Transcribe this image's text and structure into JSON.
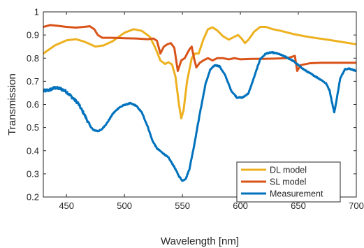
{
  "chart_data": {
    "type": "line",
    "title": "",
    "xlabel": "Wavelength [nm]",
    "ylabel": "Transmission",
    "xlim": [
      430,
      700
    ],
    "ylim": [
      0.2,
      1.0
    ],
    "xticks": [
      450,
      500,
      550,
      600,
      650,
      700
    ],
    "yticks": [
      0.2,
      0.3,
      0.4,
      0.5,
      0.6,
      0.7,
      0.8,
      0.9,
      1.0
    ],
    "ytick_labels": [
      "0.2",
      "0.3",
      "0.4",
      "0.5",
      "0.6",
      "0.7",
      "0.8",
      "0.9",
      "1"
    ],
    "grid": false,
    "box": true,
    "legend_position": "bottom-right",
    "series": [
      {
        "name": "DL model",
        "color": "#EDB120",
        "points": [
          [
            430,
            0.82
          ],
          [
            440,
            0.855
          ],
          [
            450,
            0.877
          ],
          [
            458,
            0.882
          ],
          [
            465,
            0.872
          ],
          [
            475,
            0.85
          ],
          [
            482,
            0.855
          ],
          [
            490,
            0.874
          ],
          [
            500,
            0.91
          ],
          [
            508,
            0.925
          ],
          [
            515,
            0.918
          ],
          [
            522,
            0.892
          ],
          [
            527,
            0.84
          ],
          [
            531,
            0.79
          ],
          [
            535,
            0.775
          ],
          [
            538,
            0.782
          ],
          [
            541,
            0.773
          ],
          [
            544,
            0.72
          ],
          [
            547,
            0.6
          ],
          [
            549,
            0.54
          ],
          [
            551,
            0.575
          ],
          [
            554,
            0.7
          ],
          [
            558,
            0.8
          ],
          [
            561,
            0.82
          ],
          [
            564,
            0.82
          ],
          [
            568,
            0.88
          ],
          [
            572,
            0.925
          ],
          [
            576,
            0.933
          ],
          [
            580,
            0.92
          ],
          [
            585,
            0.895
          ],
          [
            590,
            0.88
          ],
          [
            595,
            0.893
          ],
          [
            598,
            0.9
          ],
          [
            601,
            0.885
          ],
          [
            604,
            0.865
          ],
          [
            607,
            0.88
          ],
          [
            612,
            0.915
          ],
          [
            617,
            0.935
          ],
          [
            622,
            0.935
          ],
          [
            628,
            0.925
          ],
          [
            635,
            0.918
          ],
          [
            645,
            0.905
          ],
          [
            655,
            0.895
          ],
          [
            665,
            0.887
          ],
          [
            675,
            0.88
          ],
          [
            685,
            0.872
          ],
          [
            700,
            0.86
          ]
        ]
      },
      {
        "name": "SL model",
        "color": "#D95319",
        "points": [
          [
            430,
            0.935
          ],
          [
            436,
            0.943
          ],
          [
            442,
            0.94
          ],
          [
            450,
            0.935
          ],
          [
            458,
            0.932
          ],
          [
            465,
            0.935
          ],
          [
            470,
            0.938
          ],
          [
            474,
            0.925
          ],
          [
            477,
            0.9
          ],
          [
            481,
            0.888
          ],
          [
            490,
            0.888
          ],
          [
            500,
            0.886
          ],
          [
            510,
            0.885
          ],
          [
            520,
            0.882
          ],
          [
            525,
            0.885
          ],
          [
            528,
            0.875
          ],
          [
            531,
            0.82
          ],
          [
            534,
            0.85
          ],
          [
            537,
            0.86
          ],
          [
            540,
            0.865
          ],
          [
            543,
            0.845
          ],
          [
            546,
            0.745
          ],
          [
            549,
            0.79
          ],
          [
            552,
            0.8
          ],
          [
            556,
            0.838
          ],
          [
            558,
            0.85
          ],
          [
            560,
            0.8
          ],
          [
            562,
            0.76
          ],
          [
            565,
            0.78
          ],
          [
            568,
            0.79
          ],
          [
            572,
            0.8
          ],
          [
            576,
            0.79
          ],
          [
            580,
            0.8
          ],
          [
            585,
            0.8
          ],
          [
            590,
            0.795
          ],
          [
            595,
            0.8
          ],
          [
            600,
            0.795
          ],
          [
            610,
            0.797
          ],
          [
            620,
            0.797
          ],
          [
            630,
            0.798
          ],
          [
            640,
            0.8
          ],
          [
            644,
            0.805
          ],
          [
            647,
            0.81
          ],
          [
            649,
            0.745
          ],
          [
            652,
            0.77
          ],
          [
            660,
            0.778
          ],
          [
            670,
            0.78
          ],
          [
            680,
            0.78
          ],
          [
            690,
            0.78
          ],
          [
            700,
            0.78
          ]
        ]
      },
      {
        "name": "Measurement",
        "color": "#0072BD",
        "points": [
          [
            430,
            0.658
          ],
          [
            435,
            0.662
          ],
          [
            440,
            0.672
          ],
          [
            445,
            0.668
          ],
          [
            450,
            0.655
          ],
          [
            455,
            0.63
          ],
          [
            460,
            0.605
          ],
          [
            465,
            0.56
          ],
          [
            470,
            0.51
          ],
          [
            473,
            0.49
          ],
          [
            477,
            0.485
          ],
          [
            480,
            0.49
          ],
          [
            485,
            0.52
          ],
          [
            490,
            0.56
          ],
          [
            495,
            0.585
          ],
          [
            500,
            0.598
          ],
          [
            505,
            0.605
          ],
          [
            510,
            0.595
          ],
          [
            515,
            0.565
          ],
          [
            520,
            0.505
          ],
          [
            524,
            0.445
          ],
          [
            528,
            0.41
          ],
          [
            533,
            0.39
          ],
          [
            538,
            0.37
          ],
          [
            543,
            0.33
          ],
          [
            547,
            0.29
          ],
          [
            550,
            0.27
          ],
          [
            553,
            0.28
          ],
          [
            556,
            0.32
          ],
          [
            560,
            0.42
          ],
          [
            565,
            0.56
          ],
          [
            570,
            0.69
          ],
          [
            574,
            0.75
          ],
          [
            578,
            0.77
          ],
          [
            582,
            0.765
          ],
          [
            587,
            0.725
          ],
          [
            592,
            0.66
          ],
          [
            597,
            0.63
          ],
          [
            602,
            0.63
          ],
          [
            607,
            0.648
          ],
          [
            612,
            0.72
          ],
          [
            617,
            0.795
          ],
          [
            622,
            0.82
          ],
          [
            627,
            0.825
          ],
          [
            632,
            0.82
          ],
          [
            638,
            0.808
          ],
          [
            645,
            0.79
          ],
          [
            650,
            0.77
          ],
          [
            655,
            0.75
          ],
          [
            660,
            0.735
          ],
          [
            665,
            0.72
          ],
          [
            670,
            0.705
          ],
          [
            674,
            0.69
          ],
          [
            677,
            0.66
          ],
          [
            679,
            0.61
          ],
          [
            681,
            0.565
          ],
          [
            683,
            0.62
          ],
          [
            686,
            0.71
          ],
          [
            690,
            0.752
          ],
          [
            694,
            0.755
          ],
          [
            698,
            0.748
          ],
          [
            700,
            0.745
          ]
        ],
        "noisy": true
      }
    ]
  }
}
